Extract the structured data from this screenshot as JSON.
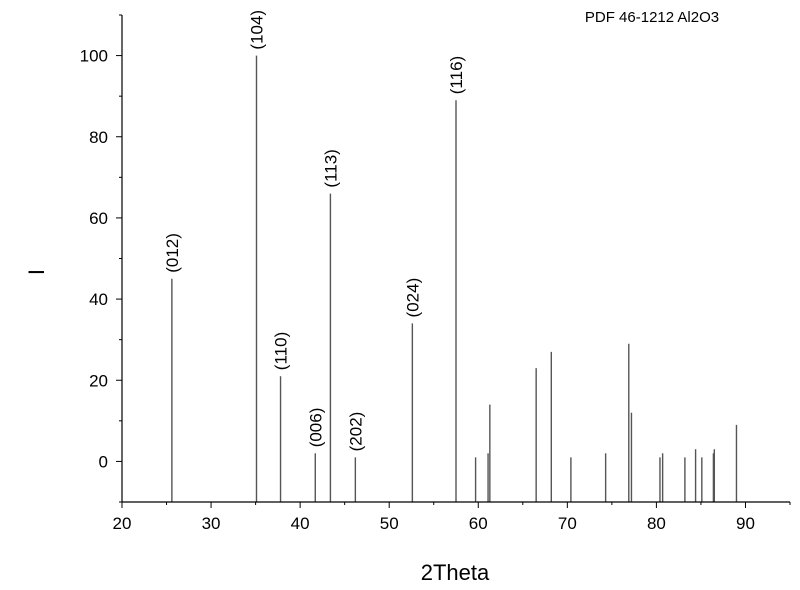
{
  "chart_data": {
    "type": "bar",
    "title": "PDF 46-1212 Al2O3",
    "xlabel": "2Theta",
    "ylabel": "I",
    "xlim": [
      20,
      95
    ],
    "ylim": [
      -10,
      110
    ],
    "grid": false,
    "x_ticks": [
      20,
      30,
      40,
      50,
      60,
      70,
      80,
      90
    ],
    "y_ticks": [
      0,
      20,
      40,
      60,
      80,
      100
    ],
    "peaks": [
      {
        "x": 25.6,
        "y": 45,
        "label": "(012)"
      },
      {
        "x": 35.1,
        "y": 100,
        "label": "(104)"
      },
      {
        "x": 37.8,
        "y": 21,
        "label": "(110)"
      },
      {
        "x": 41.7,
        "y": 2,
        "label": "(006)"
      },
      {
        "x": 43.4,
        "y": 66,
        "label": "(113)"
      },
      {
        "x": 46.2,
        "y": 1,
        "label": "(202)"
      },
      {
        "x": 52.6,
        "y": 34,
        "label": "(024)"
      },
      {
        "x": 57.5,
        "y": 89,
        "label": "(116)"
      },
      {
        "x": 59.7,
        "y": 1
      },
      {
        "x": 61.1,
        "y": 2
      },
      {
        "x": 61.3,
        "y": 14
      },
      {
        "x": 66.5,
        "y": 23
      },
      {
        "x": 68.2,
        "y": 27
      },
      {
        "x": 70.4,
        "y": 1
      },
      {
        "x": 74.3,
        "y": 2
      },
      {
        "x": 76.9,
        "y": 29
      },
      {
        "x": 77.2,
        "y": 12
      },
      {
        "x": 80.4,
        "y": 1
      },
      {
        "x": 80.7,
        "y": 2
      },
      {
        "x": 83.2,
        "y": 1
      },
      {
        "x": 84.4,
        "y": 3
      },
      {
        "x": 85.1,
        "y": 1
      },
      {
        "x": 86.4,
        "y": 2
      },
      {
        "x": 86.5,
        "y": 3
      },
      {
        "x": 88.99,
        "y": 9
      }
    ]
  }
}
